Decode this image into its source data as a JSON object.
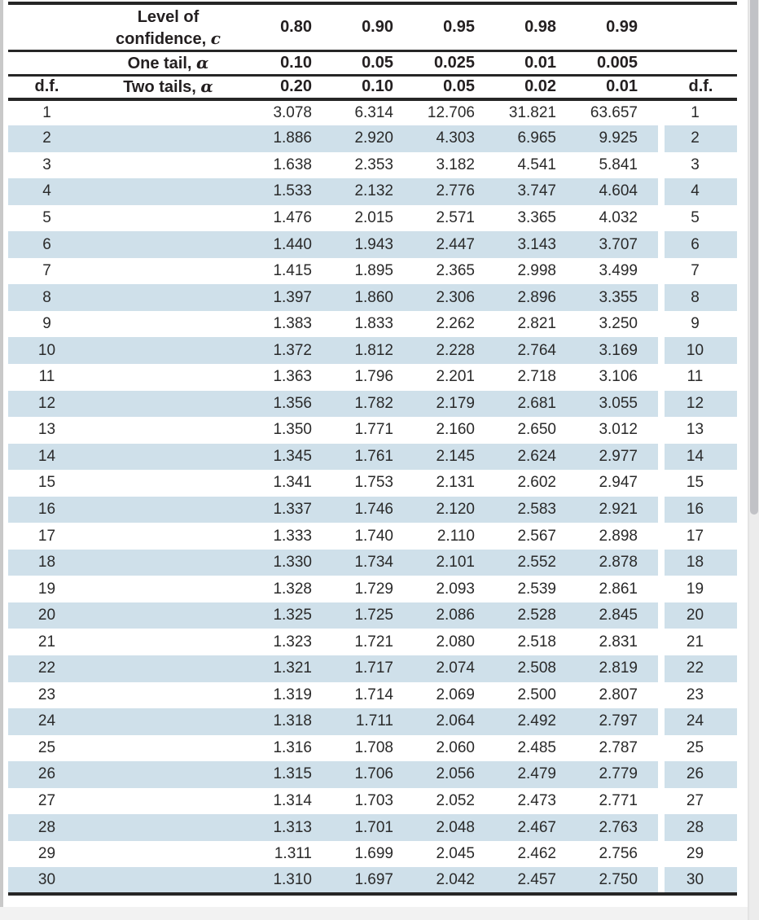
{
  "table": {
    "header": {
      "df_label": "d.f.",
      "confidence_line1": "Level of",
      "confidence_prefix": "confidence, ",
      "confidence_symbol": "c",
      "confidence_values": [
        "0.80",
        "0.90",
        "0.95",
        "0.98",
        "0.99"
      ],
      "one_tail_prefix": "One tail, ",
      "one_tail_symbol": "α",
      "one_tail_values": [
        "0.10",
        "0.05",
        "0.025",
        "0.01",
        "0.005"
      ],
      "two_tails_prefix": "Two tails, ",
      "two_tails_symbol": "α",
      "two_tails_values": [
        "0.20",
        "0.10",
        "0.05",
        "0.02",
        "0.01"
      ]
    },
    "rows": [
      {
        "df": 1,
        "values": [
          "3.078",
          "6.314",
          "12.706",
          "31.821",
          "63.657"
        ]
      },
      {
        "df": 2,
        "values": [
          "1.886",
          "2.920",
          "4.303",
          "6.965",
          "9.925"
        ]
      },
      {
        "df": 3,
        "values": [
          "1.638",
          "2.353",
          "3.182",
          "4.541",
          "5.841"
        ]
      },
      {
        "df": 4,
        "values": [
          "1.533",
          "2.132",
          "2.776",
          "3.747",
          "4.604"
        ]
      },
      {
        "df": 5,
        "values": [
          "1.476",
          "2.015",
          "2.571",
          "3.365",
          "4.032"
        ]
      },
      {
        "df": 6,
        "values": [
          "1.440",
          "1.943",
          "2.447",
          "3.143",
          "3.707"
        ]
      },
      {
        "df": 7,
        "values": [
          "1.415",
          "1.895",
          "2.365",
          "2.998",
          "3.499"
        ]
      },
      {
        "df": 8,
        "values": [
          "1.397",
          "1.860",
          "2.306",
          "2.896",
          "3.355"
        ]
      },
      {
        "df": 9,
        "values": [
          "1.383",
          "1.833",
          "2.262",
          "2.821",
          "3.250"
        ]
      },
      {
        "df": 10,
        "values": [
          "1.372",
          "1.812",
          "2.228",
          "2.764",
          "3.169"
        ]
      },
      {
        "df": 11,
        "values": [
          "1.363",
          "1.796",
          "2.201",
          "2.718",
          "3.106"
        ]
      },
      {
        "df": 12,
        "values": [
          "1.356",
          "1.782",
          "2.179",
          "2.681",
          "3.055"
        ]
      },
      {
        "df": 13,
        "values": [
          "1.350",
          "1.771",
          "2.160",
          "2.650",
          "3.012"
        ]
      },
      {
        "df": 14,
        "values": [
          "1.345",
          "1.761",
          "2.145",
          "2.624",
          "2.977"
        ]
      },
      {
        "df": 15,
        "values": [
          "1.341",
          "1.753",
          "2.131",
          "2.602",
          "2.947"
        ]
      },
      {
        "df": 16,
        "values": [
          "1.337",
          "1.746",
          "2.120",
          "2.583",
          "2.921"
        ]
      },
      {
        "df": 17,
        "values": [
          "1.333",
          "1.740",
          "2.110",
          "2.567",
          "2.898"
        ]
      },
      {
        "df": 18,
        "values": [
          "1.330",
          "1.734",
          "2.101",
          "2.552",
          "2.878"
        ]
      },
      {
        "df": 19,
        "values": [
          "1.328",
          "1.729",
          "2.093",
          "2.539",
          "2.861"
        ]
      },
      {
        "df": 20,
        "values": [
          "1.325",
          "1.725",
          "2.086",
          "2.528",
          "2.845"
        ]
      },
      {
        "df": 21,
        "values": [
          "1.323",
          "1.721",
          "2.080",
          "2.518",
          "2.831"
        ]
      },
      {
        "df": 22,
        "values": [
          "1.321",
          "1.717",
          "2.074",
          "2.508",
          "2.819"
        ]
      },
      {
        "df": 23,
        "values": [
          "1.319",
          "1.714",
          "2.069",
          "2.500",
          "2.807"
        ]
      },
      {
        "df": 24,
        "values": [
          "1.318",
          "1.711",
          "2.064",
          "2.492",
          "2.797"
        ]
      },
      {
        "df": 25,
        "values": [
          "1.316",
          "1.708",
          "2.060",
          "2.485",
          "2.787"
        ]
      },
      {
        "df": 26,
        "values": [
          "1.315",
          "1.706",
          "2.056",
          "2.479",
          "2.779"
        ]
      },
      {
        "df": 27,
        "values": [
          "1.314",
          "1.703",
          "2.052",
          "2.473",
          "2.771"
        ]
      },
      {
        "df": 28,
        "values": [
          "1.313",
          "1.701",
          "2.048",
          "2.467",
          "2.763"
        ]
      },
      {
        "df": 29,
        "values": [
          "1.311",
          "1.699",
          "2.045",
          "2.462",
          "2.756"
        ]
      },
      {
        "df": 30,
        "values": [
          "1.310",
          "1.697",
          "2.042",
          "2.457",
          "2.750"
        ]
      }
    ]
  },
  "colors": {
    "row_stripe": "#cfe0ea",
    "text": "#231f20",
    "rule": "#262626",
    "scrollbar_thumb": "#c1c2c6"
  }
}
